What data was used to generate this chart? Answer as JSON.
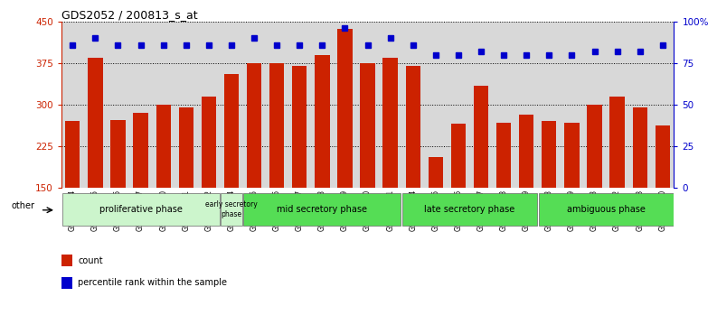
{
  "title": "GDS2052 / 200813_s_at",
  "samples": [
    "GSM109814",
    "GSM109815",
    "GSM109816",
    "GSM109817",
    "GSM109820",
    "GSM109821",
    "GSM109822",
    "GSM109824",
    "GSM109825",
    "GSM109826",
    "GSM109827",
    "GSM109828",
    "GSM109829",
    "GSM109830",
    "GSM109831",
    "GSM109834",
    "GSM109835",
    "GSM109836",
    "GSM109837",
    "GSM109838",
    "GSM109839",
    "GSM109818",
    "GSM109819",
    "GSM109823",
    "GSM109832",
    "GSM109833",
    "GSM109840"
  ],
  "counts": [
    270,
    385,
    272,
    285,
    300,
    295,
    315,
    355,
    375,
    375,
    370,
    390,
    437,
    375,
    385,
    370,
    205,
    265,
    335,
    268,
    282,
    270,
    268,
    300,
    315,
    295,
    262
  ],
  "percentiles": [
    86,
    90,
    86,
    86,
    86,
    86,
    86,
    86,
    90,
    86,
    86,
    86,
    96,
    86,
    90,
    86,
    80,
    80,
    82,
    80,
    80,
    80,
    80,
    82,
    82,
    82,
    86
  ],
  "bar_color": "#cc2200",
  "dot_color": "#0000cc",
  "ylim_left": [
    150,
    450
  ],
  "ylim_right": [
    0,
    100
  ],
  "yticks_left": [
    150,
    225,
    300,
    375,
    450
  ],
  "yticks_right": [
    0,
    25,
    50,
    75,
    100
  ],
  "ytick_labels_right": [
    "0",
    "25",
    "50",
    "75",
    "100%"
  ],
  "ylabel_left_color": "#cc2200",
  "ylabel_right_color": "#0000cc",
  "plot_bg_color": "#d8d8d8",
  "legend_count_color": "#cc2200",
  "legend_pct_color": "#0000cc",
  "phase_groups": [
    {
      "label": "proliferative phase",
      "start": 0,
      "end": 7,
      "color": "#ccf5cc",
      "fontsize": 7
    },
    {
      "label": "early secretory\nphase",
      "start": 7,
      "end": 8,
      "color": "#ccf5cc",
      "fontsize": 5.5
    },
    {
      "label": "mid secretory phase",
      "start": 8,
      "end": 15,
      "color": "#55dd55",
      "fontsize": 7
    },
    {
      "label": "late secretory phase",
      "start": 15,
      "end": 21,
      "color": "#55dd55",
      "fontsize": 7
    },
    {
      "label": "ambiguous phase",
      "start": 21,
      "end": 27,
      "color": "#55dd55",
      "fontsize": 7
    }
  ]
}
